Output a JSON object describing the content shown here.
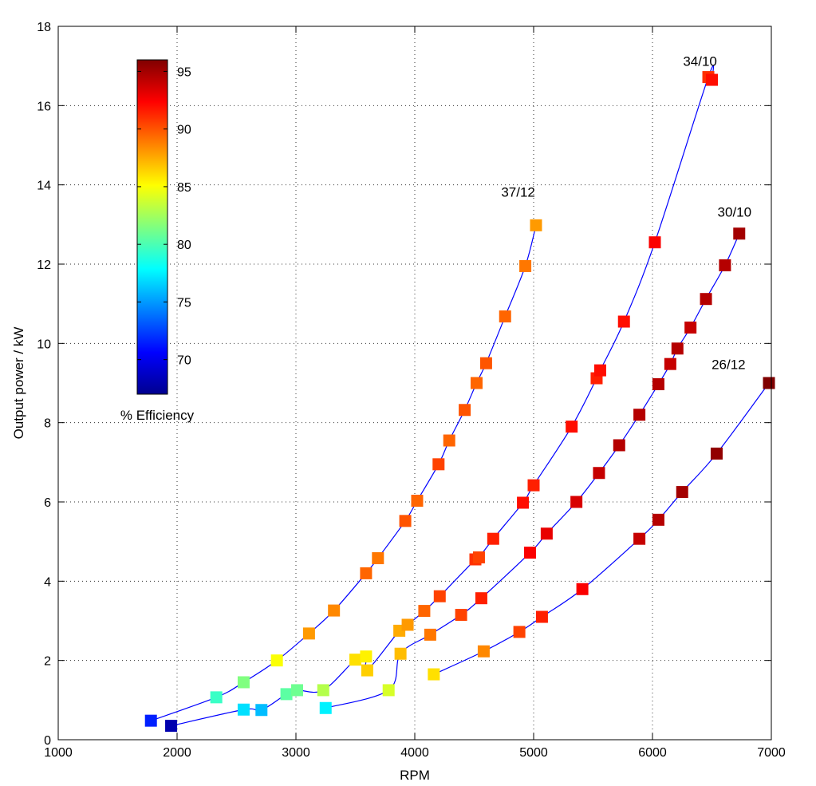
{
  "chart_data": {
    "type": "scatter",
    "xlabel": "RPM",
    "ylabel": "Output power / kW",
    "xlim": [
      1000,
      7000
    ],
    "ylim": [
      0,
      18
    ],
    "x_ticks": [
      "1000",
      "2000",
      "3000",
      "4000",
      "5000",
      "6000",
      "7000"
    ],
    "y_ticks": [
      "0",
      "2",
      "4",
      "6",
      "8",
      "10",
      "12",
      "14",
      "16",
      "18"
    ],
    "grid": true,
    "line_color": "#0000ff",
    "marker": "square",
    "colorbar": {
      "title": "% Efficiency",
      "range": [
        67,
        96
      ],
      "tick_values": [
        70,
        75,
        80,
        85,
        90,
        95
      ],
      "tick_labels": [
        "70",
        "75",
        "80",
        "85",
        "90",
        "95"
      ],
      "colormap": "jet",
      "position": "upper-left"
    },
    "series": [
      {
        "name": "37/12",
        "points": [
          {
            "x": 1780,
            "y": 0.48,
            "eff": 71.5
          },
          {
            "x": 2330,
            "y": 1.07,
            "eff": 79.5
          },
          {
            "x": 2560,
            "y": 1.45,
            "eff": 81.5
          },
          {
            "x": 2840,
            "y": 2.0,
            "eff": 85.0
          },
          {
            "x": 3110,
            "y": 2.68,
            "eff": 88.0
          },
          {
            "x": 3320,
            "y": 3.26,
            "eff": 88.5
          },
          {
            "x": 3590,
            "y": 4.2,
            "eff": 89.5
          },
          {
            "x": 3690,
            "y": 4.58,
            "eff": 89.0
          },
          {
            "x": 3920,
            "y": 5.52,
            "eff": 90.0
          },
          {
            "x": 4020,
            "y": 6.03,
            "eff": 89.5
          },
          {
            "x": 4200,
            "y": 6.95,
            "eff": 90.5
          },
          {
            "x": 4290,
            "y": 7.55,
            "eff": 89.5
          },
          {
            "x": 4420,
            "y": 8.32,
            "eff": 90.0
          },
          {
            "x": 4520,
            "y": 9.0,
            "eff": 89.5
          },
          {
            "x": 4600,
            "y": 9.5,
            "eff": 90.0
          },
          {
            "x": 4760,
            "y": 10.68,
            "eff": 89.5
          },
          {
            "x": 4930,
            "y": 11.95,
            "eff": 89.0
          },
          {
            "x": 5020,
            "y": 12.98,
            "eff": 88.0
          }
        ]
      },
      {
        "name": "34/10",
        "points": [
          {
            "x": 1950,
            "y": 0.35,
            "eff": 68.0
          },
          {
            "x": 2560,
            "y": 0.76,
            "eff": 77.0
          },
          {
            "x": 2710,
            "y": 0.75,
            "eff": 76.0
          },
          {
            "x": 2920,
            "y": 1.15,
            "eff": 80.5
          },
          {
            "x": 3010,
            "y": 1.25,
            "eff": 81.0
          },
          {
            "x": 3230,
            "y": 1.25,
            "eff": 83.0
          },
          {
            "x": 3500,
            "y": 2.02,
            "eff": 86.0
          },
          {
            "x": 3590,
            "y": 2.1,
            "eff": 85.5
          },
          {
            "x": 3600,
            "y": 1.75,
            "eff": 86.5
          },
          {
            "x": 3870,
            "y": 2.75,
            "eff": 87.5
          },
          {
            "x": 3940,
            "y": 2.9,
            "eff": 88.0
          },
          {
            "x": 4080,
            "y": 3.25,
            "eff": 89.5
          },
          {
            "x": 4210,
            "y": 3.62,
            "eff": 90.5
          },
          {
            "x": 4510,
            "y": 4.55,
            "eff": 91.0
          },
          {
            "x": 4540,
            "y": 4.6,
            "eff": 90.5
          },
          {
            "x": 4660,
            "y": 5.07,
            "eff": 91.5
          },
          {
            "x": 4910,
            "y": 5.98,
            "eff": 92.0
          },
          {
            "x": 5000,
            "y": 6.42,
            "eff": 91.5
          },
          {
            "x": 5320,
            "y": 7.9,
            "eff": 92.0
          },
          {
            "x": 5530,
            "y": 9.12,
            "eff": 91.5
          },
          {
            "x": 5560,
            "y": 9.32,
            "eff": 92.0
          },
          {
            "x": 5760,
            "y": 10.55,
            "eff": 92.0
          },
          {
            "x": 6020,
            "y": 12.55,
            "eff": 92.5
          },
          {
            "x": 6470,
            "y": 16.72,
            "eff": 91.0
          },
          {
            "x": 6500,
            "y": 16.65,
            "eff": 92.0
          }
        ]
      },
      {
        "name": "30/10",
        "points": [
          {
            "x": 3250,
            "y": 0.8,
            "eff": 77.5
          },
          {
            "x": 3780,
            "y": 1.25,
            "eff": 84.0
          },
          {
            "x": 3880,
            "y": 2.17,
            "eff": 87.0
          },
          {
            "x": 4130,
            "y": 2.65,
            "eff": 89.0
          },
          {
            "x": 4390,
            "y": 3.15,
            "eff": 90.5
          },
          {
            "x": 4560,
            "y": 3.57,
            "eff": 91.5
          },
          {
            "x": 4970,
            "y": 4.72,
            "eff": 92.5
          },
          {
            "x": 5110,
            "y": 5.2,
            "eff": 93.0
          },
          {
            "x": 5360,
            "y": 6.0,
            "eff": 93.5
          },
          {
            "x": 5550,
            "y": 6.73,
            "eff": 94.0
          },
          {
            "x": 5720,
            "y": 7.43,
            "eff": 94.5
          },
          {
            "x": 5890,
            "y": 8.2,
            "eff": 94.5
          },
          {
            "x": 6050,
            "y": 8.97,
            "eff": 94.5
          },
          {
            "x": 6150,
            "y": 9.48,
            "eff": 94.0
          },
          {
            "x": 6210,
            "y": 9.87,
            "eff": 94.5
          },
          {
            "x": 6320,
            "y": 10.4,
            "eff": 94.0
          },
          {
            "x": 6450,
            "y": 11.12,
            "eff": 94.5
          },
          {
            "x": 6610,
            "y": 11.97,
            "eff": 94.5
          },
          {
            "x": 6730,
            "y": 12.77,
            "eff": 95.0
          }
        ]
      },
      {
        "name": "26/12",
        "points": [
          {
            "x": 4160,
            "y": 1.65,
            "eff": 86.0
          },
          {
            "x": 4580,
            "y": 2.23,
            "eff": 88.5
          },
          {
            "x": 4880,
            "y": 2.72,
            "eff": 90.5
          },
          {
            "x": 5070,
            "y": 3.1,
            "eff": 91.5
          },
          {
            "x": 5410,
            "y": 3.8,
            "eff": 92.5
          },
          {
            "x": 5890,
            "y": 5.07,
            "eff": 94.0
          },
          {
            "x": 6050,
            "y": 5.55,
            "eff": 94.5
          },
          {
            "x": 6250,
            "y": 6.25,
            "eff": 95.0
          },
          {
            "x": 6540,
            "y": 7.22,
            "eff": 95.5
          },
          {
            "x": 6980,
            "y": 9.0,
            "eff": 96.0
          }
        ]
      }
    ],
    "annotations": [
      {
        "text": "37/12",
        "x": 4870,
        "y": 13.7
      },
      {
        "text": "34/10",
        "x": 6400,
        "y": 17.0
      },
      {
        "text": "30/10",
        "x": 6690,
        "y": 13.2
      },
      {
        "text": "26/12",
        "x": 6640,
        "y": 9.35
      }
    ]
  }
}
